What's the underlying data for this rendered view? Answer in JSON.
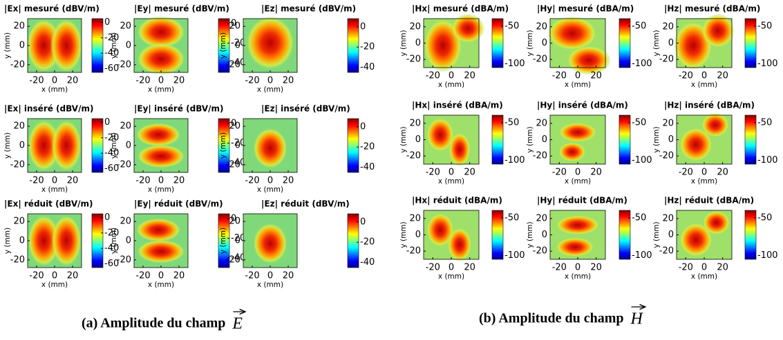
{
  "figures": [
    {
      "caption": "(a) Amplitude du champ",
      "vector": "E",
      "xlabel": "x (mm)",
      "ylabel": "y (mm)",
      "xlim": [
        -30,
        30
      ],
      "ylim": [
        -28,
        28
      ],
      "xticks": [
        -20,
        0,
        20
      ],
      "yticks": [
        20,
        0,
        -20
      ],
      "columns": [
        {
          "clim": [
            -65,
            5
          ],
          "cticks": [
            0,
            -20,
            -40,
            -60
          ]
        },
        {
          "clim": [
            -50,
            5
          ],
          "cticks": [
            0,
            -20,
            -40
          ]
        },
        {
          "clim": [
            -45,
            8
          ],
          "cticks": [
            0,
            -20,
            -40
          ]
        }
      ],
      "titles": [
        [
          "|Ex| mesuré (dBV/m)",
          "|Ey| mesuré (dBV/m)",
          "|Ez| mesuré (dBV/m)"
        ],
        [
          "|Ex| inséré (dBV/m)",
          "|Ey| inséré (dBV/m)",
          "|Ez| inséré (dBV/m)"
        ],
        [
          "|Ex| réduit (dBV/m)",
          "|Ey| réduit (dBV/m)",
          "|Ez| réduit (dBV/m)"
        ]
      ]
    },
    {
      "caption": "(b) Amplitude du champ",
      "vector": "H",
      "xlabel": "x (mm)",
      "ylabel": "y (mm)",
      "xlim": [
        -30,
        30
      ],
      "ylim": [
        -30,
        30
      ],
      "xticks": [
        -20,
        0,
        20
      ],
      "yticks": [
        20,
        0,
        -20
      ],
      "columns": [
        {
          "clim": [
            -105,
            -40
          ],
          "cticks": [
            -50,
            -100
          ]
        },
        {
          "clim": [
            -105,
            -40
          ],
          "cticks": [
            -50,
            -100
          ]
        },
        {
          "clim": [
            -105,
            -40
          ],
          "cticks": [
            -50,
            -100
          ]
        }
      ],
      "titles": [
        [
          "|Hx| mesuré (dBA/m)",
          "|Hy| mesuré (dBA/m)",
          "|Hz| mesuré (dBA/m)"
        ],
        [
          "|Hx| inséré (dBA/m)",
          "|Hy| inséré (dBA/m)",
          "|Hz| inséré (dBA/m)"
        ],
        [
          "|Hx| réduit (dBA/m)",
          "|Hy| réduit (dBA/m)",
          "|Hz| réduit (dBA/m)"
        ]
      ]
    }
  ]
}
